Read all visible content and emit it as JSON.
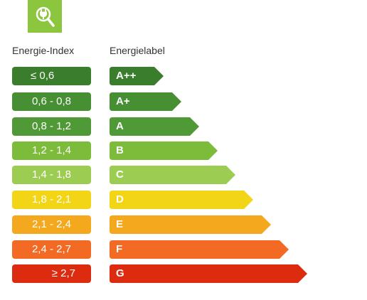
{
  "logo": {
    "icon": "plug-magnifier-icon",
    "color": "#8cc63f"
  },
  "headers": {
    "index": "Energie-Index",
    "label": "Energielabel"
  },
  "classes": [
    {
      "index": "≤  0,6",
      "label": "A++",
      "color": "#3a7d2c",
      "bar_level": 1
    },
    {
      "index": "0,6 - 0,8",
      "label": "A+",
      "color": "#468f32",
      "bar_level": 2
    },
    {
      "index": "0,8 - 1,2",
      "label": "A",
      "color": "#4f9a36",
      "bar_level": 3
    },
    {
      "index": "1,2 - 1,4",
      "label": "B",
      "color": "#7cbc3a",
      "bar_level": 4
    },
    {
      "index": "1,4 - 1,8",
      "label": "C",
      "color": "#9dcc52",
      "bar_level": 5
    },
    {
      "index": "1,8 - 2,1",
      "label": "D",
      "color": "#f2d516",
      "bar_level": 6
    },
    {
      "index": "2,1 - 2,4",
      "label": "E",
      "color": "#f4a81e",
      "bar_level": 7
    },
    {
      "index": "2,4 - 2,7",
      "label": "F",
      "color": "#f26a23",
      "bar_level": 8
    },
    {
      "index": "≥ 2,7",
      "label": "G",
      "color": "#dc2b0e",
      "bar_level": 9
    }
  ]
}
